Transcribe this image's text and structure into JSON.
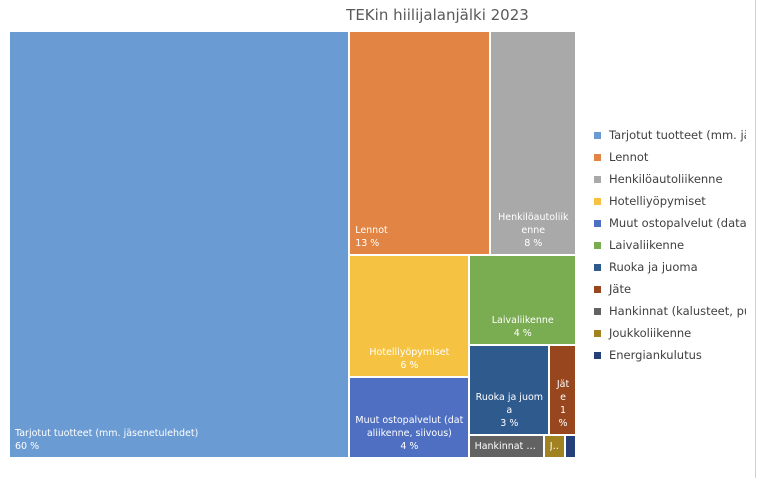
{
  "chart_data": {
    "type": "treemap",
    "title": "TEKin hiilijalanjälki 2023",
    "categories": [
      "Tarjotut tuotteet (mm. jäsenetulehdet)",
      "Lennot",
      "Henkilöautoliikenne",
      "Hotelliyöpymiset",
      "Muut ostopalvelut (dataliikenne, siivous)",
      "Laivaliikenne",
      "Ruoka ja juoma",
      "Jäte",
      "Hankinnat (kalusteet, puh",
      "Joukkoliikenne",
      "Energiankulutus"
    ],
    "values": [
      60,
      13,
      8,
      6,
      4,
      4,
      3,
      1,
      0.7,
      0.2,
      0.1
    ],
    "value_labels": [
      "60 %",
      "13 %",
      "8 %",
      "6 %",
      "4 %",
      "4 %",
      "3 %",
      "1 %",
      null,
      null,
      null
    ],
    "colors": [
      "#6a9bd3",
      "#e28443",
      "#a9a9a9",
      "#f5c242",
      "#4e6fc2",
      "#7aac52",
      "#2f5a8e",
      "#97461d",
      "#626262",
      "#a08220",
      "#26407a"
    ]
  }
}
